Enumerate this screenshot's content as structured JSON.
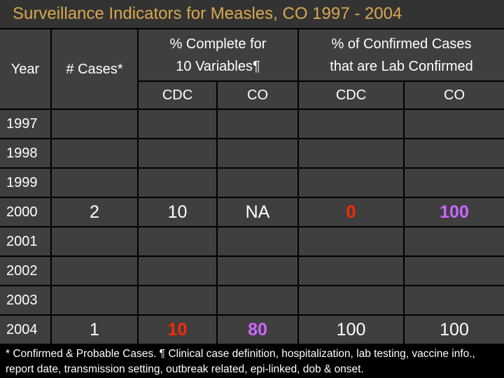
{
  "header": {
    "title": "Surveillance Indicators for Measles, CO 1997 - 2004"
  },
  "table": {
    "columns": {
      "year": "Year",
      "cases": "# Cases*",
      "complete": {
        "lines": [
          "% Complete for",
          "10 Variables¶"
        ],
        "sub": [
          "CDC",
          "CO"
        ]
      },
      "lab": {
        "lines": [
          "% of Confirmed Cases",
          "that are Lab Confirmed"
        ],
        "sub": [
          "CDC",
          "CO"
        ]
      }
    },
    "rows": [
      {
        "year": "1997"
      },
      {
        "year": "1998"
      },
      {
        "year": "1999"
      },
      {
        "year": "2000",
        "cells": [
          {
            "text": "2"
          },
          {
            "text": "10"
          },
          {
            "text": "NA"
          },
          {
            "text": "0",
            "color": "#ff2a00"
          },
          {
            "text": "100",
            "color": "#cc66ff"
          }
        ]
      },
      {
        "year": "2001"
      },
      {
        "year": "2002"
      },
      {
        "year": "2003"
      },
      {
        "year": "2004",
        "cells": [
          {
            "text": "1"
          },
          {
            "text": "10",
            "color": "#ff2a00"
          },
          {
            "text": "80",
            "color": "#cc66ff"
          },
          {
            "text": "100"
          },
          {
            "text": "100"
          }
        ]
      }
    ]
  },
  "footnote": "* Confirmed & Probable Cases. ¶ Clinical case definition, hospitalization, lab testing, vaccine info., report date, transmission setting, outbreak related, epi-linked, dob & onset."
}
